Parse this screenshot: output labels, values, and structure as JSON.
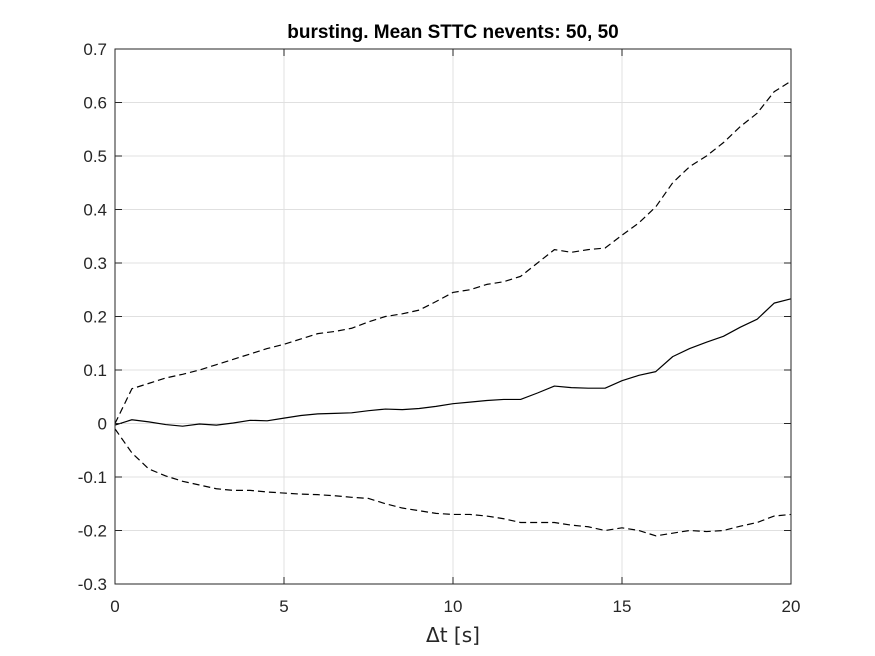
{
  "chart_data": {
    "type": "line",
    "title": "bursting.  Mean STTC nevents: 50, 50",
    "xlabel": "Δt [s]",
    "ylabel": "",
    "xlim": [
      0,
      20
    ],
    "ylim": [
      -0.3,
      0.7
    ],
    "xticks": [
      0,
      5,
      10,
      15,
      20
    ],
    "yticks": [
      -0.3,
      -0.2,
      -0.1,
      0,
      0.1,
      0.2,
      0.3,
      0.4,
      0.5,
      0.6,
      0.7
    ],
    "xtick_labels": [
      "0",
      "5",
      "10",
      "15",
      "20"
    ],
    "ytick_labels": [
      "-0.3",
      "-0.2",
      "-0.1",
      "0",
      "0.1",
      "0.2",
      "0.3",
      "0.4",
      "0.5",
      "0.6",
      "0.7"
    ],
    "grid": true,
    "series": [
      {
        "style": "solid",
        "color": "#000000",
        "x": [
          0,
          0.5,
          1,
          1.5,
          2,
          2.5,
          3,
          3.5,
          4,
          4.5,
          5,
          5.5,
          6,
          6.5,
          7,
          7.5,
          8,
          8.5,
          9,
          9.5,
          10,
          10.5,
          11,
          11.5,
          12,
          12.5,
          13,
          13.5,
          14,
          14.5,
          15,
          15.5,
          16,
          16.5,
          17,
          17.5,
          18,
          18.5,
          19,
          19.5,
          20
        ],
        "y": [
          -0.003,
          0.007,
          0.003,
          -0.002,
          -0.005,
          -0.001,
          -0.003,
          0.001,
          0.006,
          0.005,
          0.01,
          0.015,
          0.018,
          0.019,
          0.02,
          0.024,
          0.027,
          0.026,
          0.028,
          0.032,
          0.037,
          0.04,
          0.043,
          0.045,
          0.045,
          0.057,
          0.07,
          0.067,
          0.066,
          0.066,
          0.08,
          0.09,
          0.097,
          0.125,
          0.14,
          0.152,
          0.163,
          0.18,
          0.195,
          0.225,
          0.233
        ]
      },
      {
        "style": "dashed",
        "color": "#000000",
        "x": [
          0,
          0.5,
          1,
          1.5,
          2,
          2.5,
          3,
          3.5,
          4,
          4.5,
          5,
          5.5,
          6,
          6.5,
          7,
          7.5,
          8,
          8.5,
          9,
          9.5,
          10,
          10.5,
          11,
          11.5,
          12,
          12.5,
          13,
          13.5,
          14,
          14.5,
          15,
          15.5,
          16,
          16.5,
          17,
          17.5,
          18,
          18.5,
          19,
          19.5,
          20
        ],
        "y": [
          0.0,
          0.065,
          0.075,
          0.085,
          0.092,
          0.1,
          0.11,
          0.12,
          0.13,
          0.14,
          0.148,
          0.158,
          0.168,
          0.172,
          0.178,
          0.19,
          0.2,
          0.205,
          0.212,
          0.228,
          0.245,
          0.25,
          0.26,
          0.265,
          0.275,
          0.3,
          0.325,
          0.32,
          0.325,
          0.328,
          0.352,
          0.375,
          0.405,
          0.45,
          0.48,
          0.5,
          0.525,
          0.555,
          0.58,
          0.62,
          0.64
        ]
      },
      {
        "style": "dashed",
        "color": "#000000",
        "x": [
          0,
          0.5,
          1,
          1.5,
          2,
          2.5,
          3,
          3.5,
          4,
          4.5,
          5,
          5.5,
          6,
          6.5,
          7,
          7.5,
          8,
          8.5,
          9,
          9.5,
          10,
          10.5,
          11,
          11.5,
          12,
          12.5,
          13,
          13.5,
          14,
          14.5,
          15,
          15.5,
          16,
          16.5,
          17,
          17.5,
          18,
          18.5,
          19,
          19.5,
          20
        ],
        "y": [
          -0.01,
          -0.055,
          -0.085,
          -0.098,
          -0.108,
          -0.115,
          -0.122,
          -0.125,
          -0.125,
          -0.128,
          -0.13,
          -0.132,
          -0.133,
          -0.135,
          -0.138,
          -0.14,
          -0.15,
          -0.158,
          -0.163,
          -0.168,
          -0.17,
          -0.17,
          -0.173,
          -0.178,
          -0.185,
          -0.185,
          -0.185,
          -0.19,
          -0.193,
          -0.2,
          -0.195,
          -0.2,
          -0.21,
          -0.205,
          -0.2,
          -0.202,
          -0.2,
          -0.192,
          -0.185,
          -0.173,
          -0.17
        ]
      }
    ]
  }
}
